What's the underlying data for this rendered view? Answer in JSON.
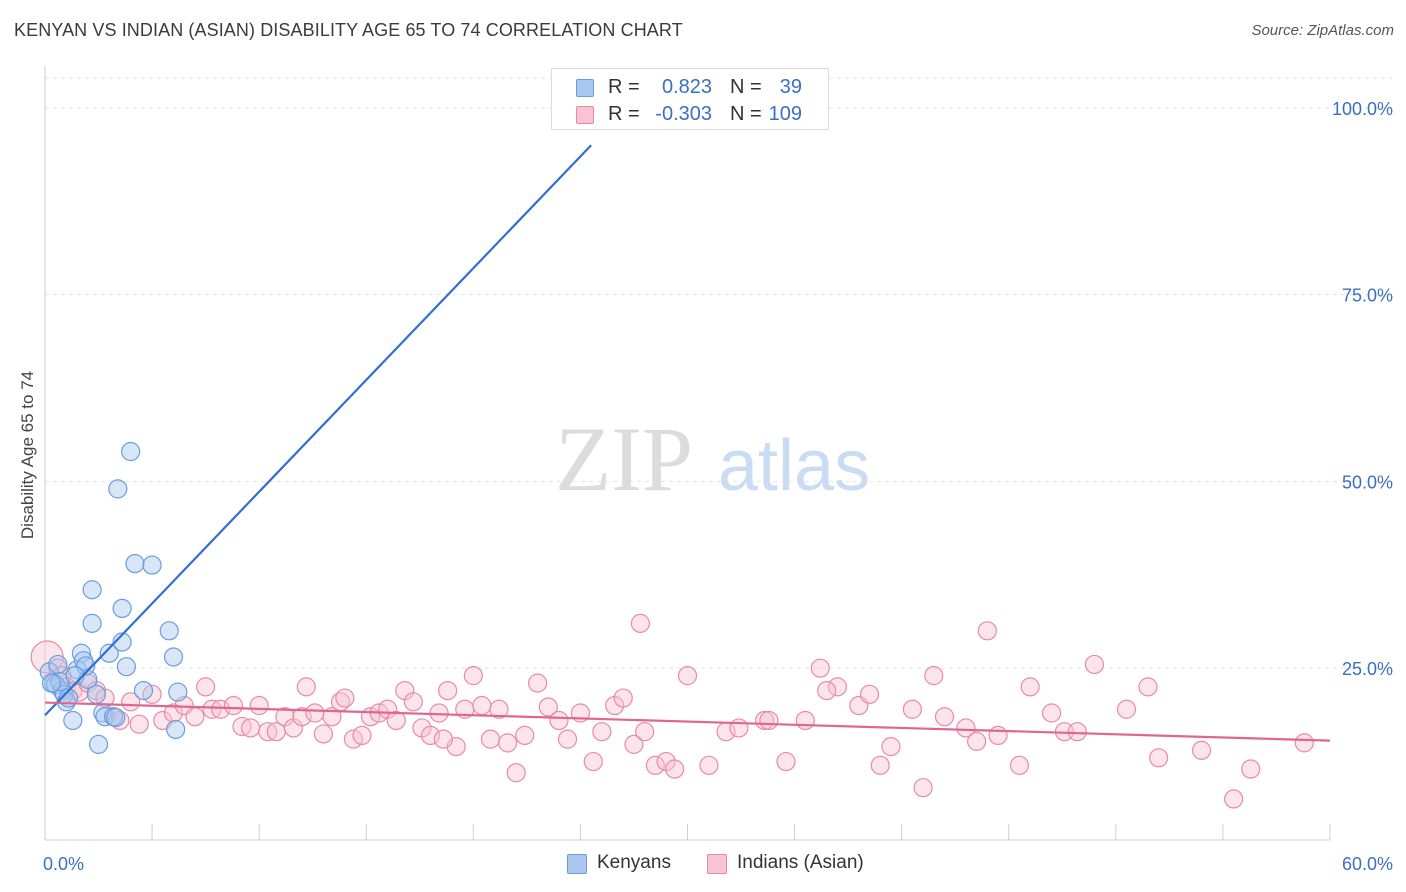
{
  "header": {
    "title": "KENYAN VS INDIAN (ASIAN) DISABILITY AGE 65 TO 74 CORRELATION CHART",
    "source": "Source: ZipAtlas.com"
  },
  "watermark": {
    "zip": "ZIP",
    "atlas": "atlas"
  },
  "legend": {
    "rows": [
      {
        "r_label": "R =",
        "r_value": "0.823",
        "n_label": "N =",
        "n_value": "39",
        "color": "#a9c8f0",
        "stroke": "#6a9de0"
      },
      {
        "r_label": "R =",
        "r_value": "-0.303",
        "n_label": "N =",
        "n_value": "109",
        "color": "#f8c3d3",
        "stroke": "#e88aa6"
      }
    ]
  },
  "bottom_legend": {
    "items": [
      "Kenyans",
      "Indians (Asian)"
    ]
  },
  "chart_data": {
    "type": "scatter",
    "title": "KENYAN VS INDIAN (ASIAN) DISABILITY AGE 65 TO 74 CORRELATION CHART",
    "xlabel": "",
    "ylabel": "Disability Age 65 to 74",
    "xlim": [
      0,
      60
    ],
    "ylim": [
      2,
      104
    ],
    "x_tick_labels": [
      "0.0%",
      "60.0%"
    ],
    "y_ticks": [
      25,
      50,
      75,
      100
    ],
    "y_tick_labels": [
      "25.0%",
      "50.0%",
      "75.0%",
      "100.0%"
    ],
    "grid": true,
    "legend_position": "top-center",
    "series": [
      {
        "name": "Kenyans",
        "color": "#6a9de0",
        "fill": "#a9c8f0",
        "trend_color": "#2f6fd1",
        "trend": {
          "x": [
            0,
            25.5
          ],
          "y": [
            18.7,
            95.0
          ]
        },
        "points": [
          [
            0.2,
            24.5
          ],
          [
            0.4,
            23.0
          ],
          [
            0.5,
            22.8
          ],
          [
            0.6,
            25.5
          ],
          [
            0.8,
            22.0
          ],
          [
            0.9,
            21.5
          ],
          [
            1.0,
            20.5
          ],
          [
            1.1,
            21.0
          ],
          [
            1.3,
            18.0
          ],
          [
            1.5,
            24.8
          ],
          [
            1.7,
            27.0
          ],
          [
            1.8,
            26.0
          ],
          [
            2.0,
            23.5
          ],
          [
            2.2,
            31.0
          ],
          [
            2.2,
            35.5
          ],
          [
            2.5,
            14.8
          ],
          [
            2.7,
            19.0
          ],
          [
            2.8,
            18.5
          ],
          [
            3.0,
            27.0
          ],
          [
            3.2,
            18.5
          ],
          [
            3.4,
            49.0
          ],
          [
            3.6,
            33.0
          ],
          [
            3.6,
            28.5
          ],
          [
            3.8,
            25.2
          ],
          [
            4.0,
            54.0
          ],
          [
            4.2,
            39.0
          ],
          [
            5.0,
            38.8
          ],
          [
            5.8,
            30.0
          ],
          [
            6.0,
            26.5
          ],
          [
            6.1,
            16.8
          ],
          [
            6.2,
            21.8
          ],
          [
            0.7,
            23.2
          ],
          [
            1.9,
            25.3
          ],
          [
            3.3,
            18.4
          ],
          [
            2.4,
            21.5
          ],
          [
            0.3,
            23.0
          ],
          [
            1.4,
            24.0
          ],
          [
            4.6,
            22.0
          ],
          [
            24.5,
            100.0
          ]
        ]
      },
      {
        "name": "Indians (Asian)",
        "color": "#e88aa6",
        "fill": "#f8c3d3",
        "trend_color": "#e0668f",
        "trend": {
          "x": [
            0,
            60
          ],
          "y": [
            20.4,
            15.3
          ]
        },
        "points": [
          [
            0.1,
            26.5
          ],
          [
            0.6,
            25.0
          ],
          [
            0.8,
            24.0
          ],
          [
            1.0,
            22.5
          ],
          [
            1.3,
            22.0
          ],
          [
            1.6,
            21.8
          ],
          [
            2.0,
            23.0
          ],
          [
            2.4,
            22.0
          ],
          [
            2.8,
            21.0
          ],
          [
            3.2,
            18.5
          ],
          [
            3.5,
            18.0
          ],
          [
            4.0,
            20.5
          ],
          [
            4.4,
            17.5
          ],
          [
            5.0,
            21.5
          ],
          [
            5.5,
            18.0
          ],
          [
            6.0,
            19.0
          ],
          [
            6.5,
            20.0
          ],
          [
            7.0,
            18.5
          ],
          [
            7.5,
            22.5
          ],
          [
            7.8,
            19.5
          ],
          [
            8.2,
            19.5
          ],
          [
            8.8,
            20.0
          ],
          [
            9.2,
            17.2
          ],
          [
            9.6,
            17.0
          ],
          [
            10.0,
            20.0
          ],
          [
            10.4,
            16.5
          ],
          [
            10.8,
            16.5
          ],
          [
            11.2,
            18.5
          ],
          [
            11.6,
            17.0
          ],
          [
            12.0,
            18.5
          ],
          [
            12.2,
            22.5
          ],
          [
            12.6,
            19.0
          ],
          [
            13.0,
            16.2
          ],
          [
            13.4,
            18.5
          ],
          [
            13.8,
            20.5
          ],
          [
            14.0,
            21.0
          ],
          [
            14.4,
            15.5
          ],
          [
            14.8,
            16.0
          ],
          [
            15.2,
            18.5
          ],
          [
            15.6,
            19.0
          ],
          [
            16.0,
            19.5
          ],
          [
            16.4,
            18.0
          ],
          [
            16.8,
            22.0
          ],
          [
            17.2,
            20.5
          ],
          [
            17.6,
            17.0
          ],
          [
            18.0,
            16.0
          ],
          [
            18.4,
            19.0
          ],
          [
            18.8,
            22.0
          ],
          [
            19.2,
            14.5
          ],
          [
            19.6,
            19.5
          ],
          [
            20.0,
            24.0
          ],
          [
            20.4,
            20.0
          ],
          [
            20.8,
            15.5
          ],
          [
            21.2,
            19.5
          ],
          [
            21.6,
            15.0
          ],
          [
            22.0,
            11.0
          ],
          [
            22.4,
            16.0
          ],
          [
            23.0,
            23.0
          ],
          [
            23.5,
            19.8
          ],
          [
            24.0,
            18.0
          ],
          [
            24.4,
            15.5
          ],
          [
            25.0,
            19.0
          ],
          [
            25.6,
            12.5
          ],
          [
            26.0,
            16.5
          ],
          [
            26.6,
            20.0
          ],
          [
            27.0,
            21.0
          ],
          [
            27.5,
            14.8
          ],
          [
            28.0,
            16.5
          ],
          [
            28.5,
            12.0
          ],
          [
            29.0,
            12.5
          ],
          [
            29.4,
            11.5
          ],
          [
            30.0,
            24.0
          ],
          [
            31.0,
            12.0
          ],
          [
            31.8,
            16.5
          ],
          [
            32.4,
            17.0
          ],
          [
            33.6,
            18.0
          ],
          [
            34.6,
            12.5
          ],
          [
            35.5,
            18.0
          ],
          [
            36.2,
            25.0
          ],
          [
            37.0,
            22.5
          ],
          [
            38.0,
            20.0
          ],
          [
            38.5,
            21.5
          ],
          [
            39.0,
            12.0
          ],
          [
            39.5,
            14.5
          ],
          [
            40.5,
            19.5
          ],
          [
            41.0,
            9.0
          ],
          [
            41.5,
            24.0
          ],
          [
            42.0,
            18.5
          ],
          [
            43.0,
            17.0
          ],
          [
            43.5,
            15.2
          ],
          [
            44.0,
            30.0
          ],
          [
            44.5,
            16.0
          ],
          [
            45.5,
            12.0
          ],
          [
            46.0,
            22.5
          ],
          [
            47.0,
            19.0
          ],
          [
            47.6,
            16.5
          ],
          [
            48.2,
            16.5
          ],
          [
            49.0,
            25.5
          ],
          [
            50.5,
            19.5
          ],
          [
            51.5,
            22.5
          ],
          [
            52.0,
            13.0
          ],
          [
            54.0,
            14.0
          ],
          [
            55.5,
            7.5
          ],
          [
            56.3,
            11.5
          ],
          [
            58.8,
            15.0
          ],
          [
            27.8,
            31.0
          ],
          [
            18.6,
            15.5
          ],
          [
            33.8,
            18.0
          ],
          [
            36.5,
            22.0
          ]
        ]
      }
    ]
  }
}
